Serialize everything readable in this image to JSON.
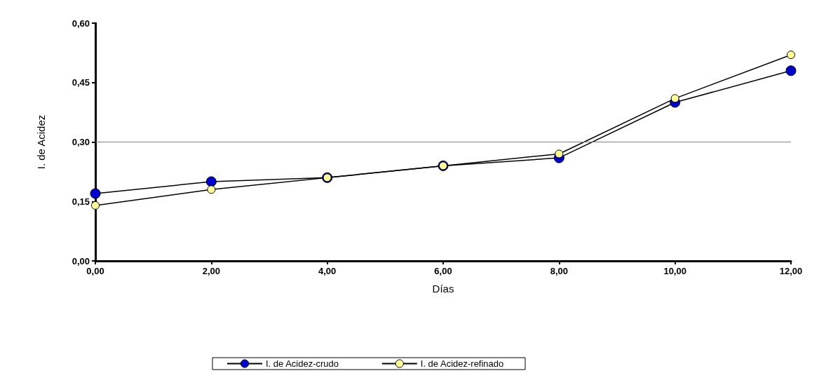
{
  "chart_data": {
    "type": "line",
    "xlabel": "Días",
    "ylabel": "I. de Acidez",
    "x": [
      0,
      2,
      4,
      6,
      8,
      10,
      12
    ],
    "series": [
      {
        "name": "I. de Acidez-crudo",
        "color": "#0000cc",
        "values": [
          0.17,
          0.2,
          0.21,
          0.24,
          0.26,
          0.4,
          0.48
        ]
      },
      {
        "name": "I. de Acidez-refinado",
        "color": "#ffff99",
        "values": [
          0.14,
          0.18,
          0.21,
          0.24,
          0.27,
          0.41,
          0.52
        ]
      }
    ],
    "xlim": [
      0,
      12
    ],
    "xticks": [
      {
        "value": 0,
        "label": "0,00"
      },
      {
        "value": 2,
        "label": "2,00"
      },
      {
        "value": 4,
        "label": "4,00"
      },
      {
        "value": 6,
        "label": "6,00"
      },
      {
        "value": 8,
        "label": "8,00"
      },
      {
        "value": 10,
        "label": "10,00"
      },
      {
        "value": 12,
        "label": "12,00"
      }
    ],
    "ylim": [
      0,
      0.6
    ],
    "yticks": [
      {
        "value": 0,
        "label": "0,00"
      },
      {
        "value": 0.15,
        "label": "0,15"
      },
      {
        "value": 0.3,
        "label": "0,30"
      },
      {
        "value": 0.45,
        "label": "0,45"
      },
      {
        "value": 0.6,
        "label": "0,60"
      }
    ],
    "ref_lines": [
      {
        "axis": "y",
        "value": 0.3,
        "color": "#808080"
      }
    ],
    "grid": false,
    "legend": "bottom",
    "marker": "circle",
    "line_style": "solid"
  }
}
